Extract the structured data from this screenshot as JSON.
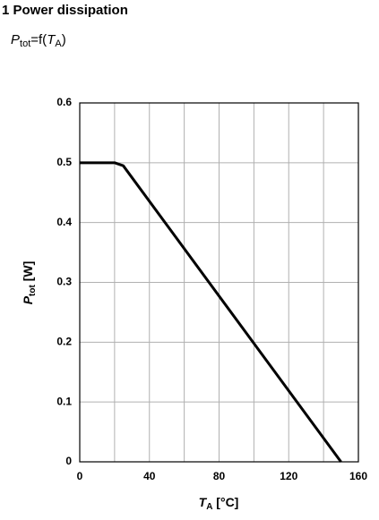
{
  "chart_data": {
    "type": "line",
    "title": "1 Power dissipation",
    "subtitle_parts": [
      "P",
      "tot",
      "=f(",
      "T",
      "A",
      ")"
    ],
    "ylabel_parts": [
      "P",
      "tot",
      " [W]"
    ],
    "xlabel_parts": [
      "T",
      "A",
      " [°C]"
    ],
    "x": [
      0,
      20,
      25,
      150
    ],
    "series": [
      {
        "color": "#000000",
        "values": [
          0.5,
          0.5,
          0.495,
          0
        ]
      }
    ],
    "xlim": [
      0,
      160
    ],
    "xticks": [
      0,
      40,
      80,
      120,
      160
    ],
    "xminor": [
      20,
      60,
      100,
      140
    ],
    "ylim": [
      0,
      0.6
    ],
    "yticks": [
      0,
      0.1,
      0.2,
      0.3,
      0.4,
      0.5,
      0.6
    ],
    "grid": true
  }
}
